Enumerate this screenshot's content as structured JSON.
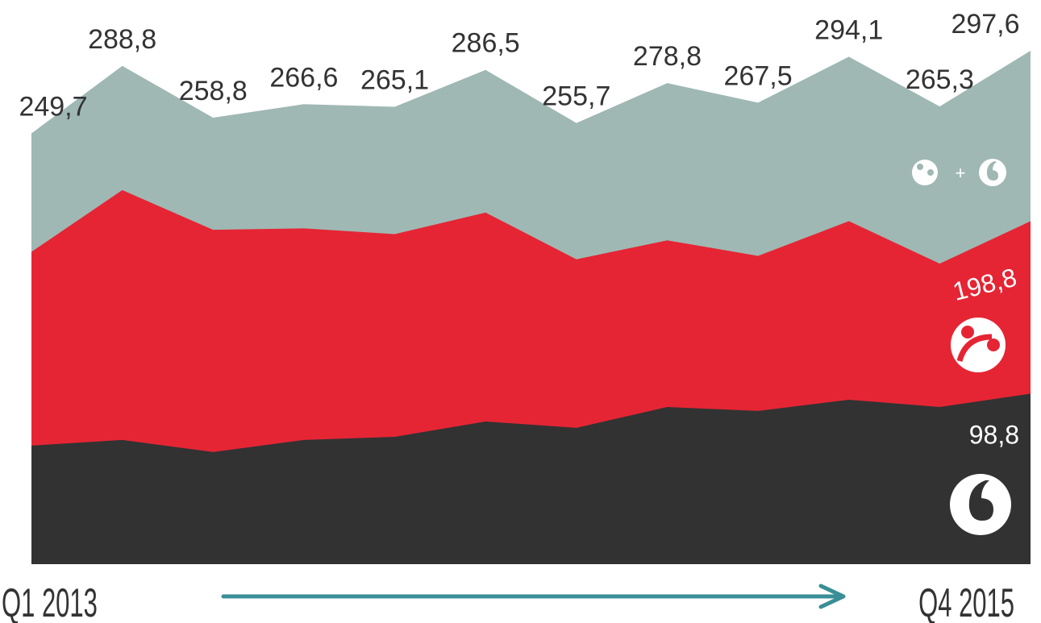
{
  "chart_data": {
    "type": "area",
    "categories": [
      "Q1 2013",
      null,
      null,
      null,
      null,
      null,
      null,
      null,
      null,
      null,
      null,
      "Q4 2015"
    ],
    "ylim": [
      0,
      327
    ],
    "series": [
      {
        "color": "#9fb8b3",
        "values": [
          249.7,
          288.8,
          258.8,
          266.6,
          265.1,
          286.5,
          255.7,
          278.8,
          267.5,
          294.1,
          265.3,
          297.6
        ],
        "value_labels": [
          "249,7",
          "288,8",
          "258,8",
          "266,6",
          "265,1",
          "286,5",
          "255,7",
          "278,8",
          "267,5",
          "294,1",
          "265,3",
          "297,6"
        ]
      },
      {
        "color": "#e52534",
        "values": [
          181.0,
          216.8,
          193.8,
          194.6,
          191.3,
          203.8,
          176.7,
          187.7,
          178.7,
          198.8,
          174.2,
          198.8
        ],
        "value_labels": [
          null,
          null,
          null,
          null,
          null,
          null,
          null,
          null,
          null,
          null,
          null,
          "198,8"
        ]
      },
      {
        "color": "#323232",
        "values": [
          68.7,
          72.0,
          65.0,
          72.0,
          73.8,
          82.7,
          79.0,
          91.1,
          88.8,
          95.3,
          91.1,
          98.8
        ],
        "value_labels": [
          null,
          null,
          null,
          null,
          null,
          null,
          null,
          null,
          null,
          null,
          null,
          "98,8"
        ]
      }
    ]
  }
}
